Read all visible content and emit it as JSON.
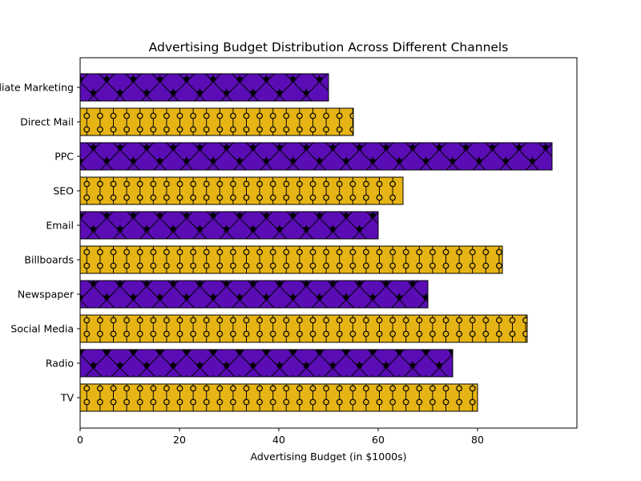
{
  "chart_data": {
    "type": "bar",
    "orientation": "horizontal",
    "title": "Advertising Budget Distribution Across Different Channels",
    "xlabel": "Advertising Budget (in $1000s)",
    "ylabel": "",
    "xlim": [
      0,
      100
    ],
    "xticks": [
      0,
      20,
      40,
      60,
      80
    ],
    "grid": false,
    "categories": [
      "TV",
      "Radio",
      "Social Media",
      "Newspaper",
      "Billboards",
      "Email",
      "SEO",
      "PPC",
      "Direct Mail",
      "Affiliate Marketing"
    ],
    "values": [
      80,
      75,
      90,
      70,
      85,
      60,
      65,
      95,
      55,
      50
    ],
    "colors": [
      "#e6b415",
      "#5a0db5",
      "#e6b415",
      "#5a0db5",
      "#e6b415",
      "#5a0db5",
      "#e6b415",
      "#5a0db5",
      "#e6b415",
      "#5a0db5"
    ]
  }
}
